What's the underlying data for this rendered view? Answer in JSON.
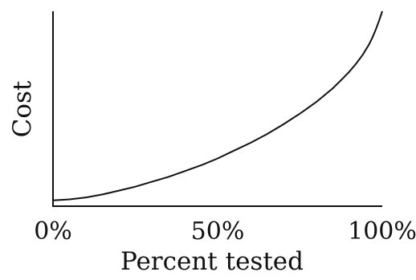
{
  "chart_data": {
    "type": "line",
    "title": "",
    "xlabel": "Percent tested",
    "ylabel": "Cost",
    "x_tick_labels": [
      "0%",
      "50%",
      "100%"
    ],
    "x_ticks": [
      0,
      50,
      100
    ],
    "xlim": [
      0,
      100
    ],
    "y_ticks_shown": false,
    "grid": false,
    "legend": "none",
    "series": [
      {
        "x": [
          0,
          5,
          10,
          15,
          20,
          25,
          30,
          35,
          40,
          45,
          50,
          55,
          60,
          65,
          70,
          75,
          80,
          85,
          88,
          90,
          92,
          94,
          96,
          97,
          98,
          99,
          100
        ],
        "y": [
          0.03,
          0.035,
          0.045,
          0.06,
          0.08,
          0.1,
          0.125,
          0.15,
          0.18,
          0.21,
          0.245,
          0.285,
          0.325,
          0.37,
          0.42,
          0.475,
          0.535,
          0.605,
          0.655,
          0.69,
          0.73,
          0.775,
          0.83,
          0.865,
          0.905,
          0.95,
          1.0
        ],
        "color": "#111111"
      }
    ]
  }
}
